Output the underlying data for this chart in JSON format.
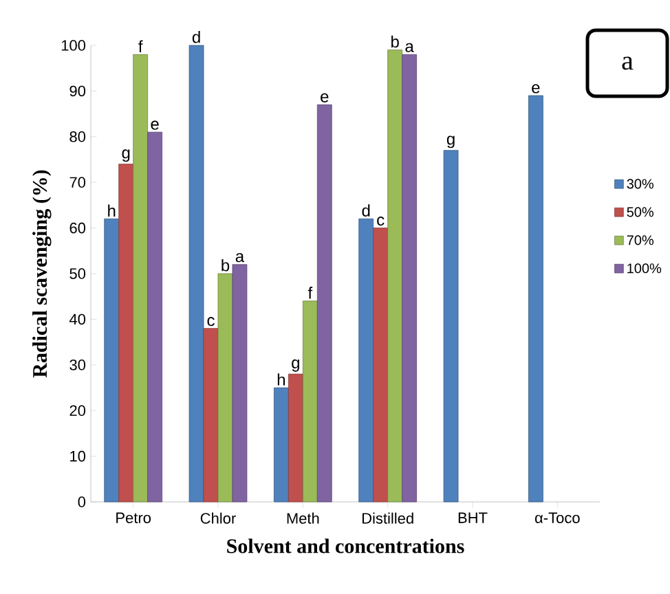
{
  "chart_data": {
    "type": "bar",
    "xlabel": "Solvent and concentrations",
    "ylabel": "Radical scavenging (%)",
    "categories": [
      "Petro",
      "Chlor",
      "Meth",
      "Distilled",
      "BHT",
      "α-Toco"
    ],
    "series": [
      {
        "name": "30%",
        "color": "#4f81bd",
        "values": [
          62,
          100,
          25,
          62,
          77,
          89
        ],
        "value_labels": [
          "h",
          "d",
          "h",
          "d",
          "g",
          "e"
        ]
      },
      {
        "name": "50%",
        "color": "#c0504d",
        "values": [
          74,
          38,
          28,
          60,
          null,
          null
        ],
        "value_labels": [
          "g",
          "c",
          "g",
          "c",
          null,
          null
        ]
      },
      {
        "name": "70%",
        "color": "#9bbb59",
        "values": [
          98,
          50,
          44,
          99,
          null,
          null
        ],
        "value_labels": [
          "f",
          "b",
          "f",
          "b",
          null,
          null
        ]
      },
      {
        "name": "100%",
        "color": "#8064a2",
        "values": [
          81,
          52,
          87,
          98,
          null,
          null
        ],
        "value_labels": [
          "e",
          "a",
          "e",
          "a",
          null,
          null
        ]
      }
    ],
    "ylim": [
      0,
      100
    ],
    "yticks": [
      0,
      10,
      20,
      30,
      40,
      50,
      60,
      70,
      80,
      90,
      100
    ],
    "legend": "right",
    "grid": false,
    "annotations": [
      "a"
    ]
  }
}
